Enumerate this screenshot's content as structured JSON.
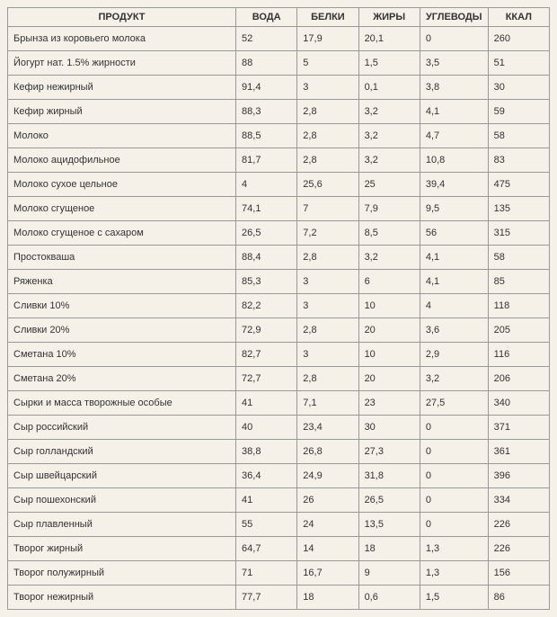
{
  "table": {
    "headers": [
      "ПРОДУКТ",
      "ВОДА",
      "БЕЛКИ",
      "ЖИРЫ",
      "УГЛЕВОДЫ",
      "ККАЛ"
    ],
    "rows": [
      [
        "Брынза из коровьего молока",
        "52",
        "17,9",
        "20,1",
        "0",
        "260"
      ],
      [
        "Йогурт нат. 1.5% жирности",
        "88",
        "5",
        "1,5",
        "3,5",
        "51"
      ],
      [
        "Кефир нежирный",
        "91,4",
        "3",
        "0,1",
        "3,8",
        "30"
      ],
      [
        "Кефир жирный",
        "88,3",
        "2,8",
        "3,2",
        "4,1",
        "59"
      ],
      [
        "Молоко",
        "88,5",
        "2,8",
        "3,2",
        "4,7",
        "58"
      ],
      [
        "Молоко ацидофильное",
        "81,7",
        "2,8",
        "3,2",
        "10,8",
        "83"
      ],
      [
        "Молоко сухое цельное",
        "4",
        "25,6",
        "25",
        "39,4",
        "475"
      ],
      [
        "Молоко сгущеное",
        "74,1",
        "7",
        "7,9",
        "9,5",
        "135"
      ],
      [
        "Молоко сгущеное с сахаром",
        "26,5",
        "7,2",
        "8,5",
        "56",
        "315"
      ],
      [
        "Простокваша",
        "88,4",
        "2,8",
        "3,2",
        "4,1",
        "58"
      ],
      [
        "Ряженка",
        "85,3",
        "3",
        "6",
        "4,1",
        "85"
      ],
      [
        "Сливки 10%",
        "82,2",
        "3",
        "10",
        "4",
        "118"
      ],
      [
        "Сливки 20%",
        "72,9",
        "2,8",
        "20",
        "3,6",
        "205"
      ],
      [
        "Сметана 10%",
        "82,7",
        "3",
        "10",
        "2,9",
        "116"
      ],
      [
        "Сметана 20%",
        "72,7",
        "2,8",
        "20",
        "3,2",
        "206"
      ],
      [
        "Сырки и масса творожные особые",
        "41",
        "7,1",
        "23",
        "27,5",
        "340"
      ],
      [
        "Сыр российский",
        "40",
        "23,4",
        "30",
        "0",
        "371"
      ],
      [
        "Сыр голландский",
        "38,8",
        "26,8",
        "27,3",
        "0",
        "361"
      ],
      [
        "Сыр швейцарский",
        "36,4",
        "24,9",
        "31,8",
        "0",
        "396"
      ],
      [
        "Сыр пошехонский",
        "41",
        "26",
        "26,5",
        "0",
        "334"
      ],
      [
        "Сыр плавленный",
        "55",
        "24",
        "13,5",
        "0",
        "226"
      ],
      [
        "Творог жирный",
        "64,7",
        "14",
        "18",
        "1,3",
        "226"
      ],
      [
        "Творог полужирный",
        "71",
        "16,7",
        "9",
        "1,3",
        "156"
      ],
      [
        "Творог нежирный",
        "77,7",
        "18",
        "0,6",
        "1,5",
        "86"
      ]
    ]
  },
  "styling": {
    "background_color": "#f5f0e8",
    "border_color": "#999999",
    "text_color": "#333333",
    "header_font_weight": "bold",
    "font_family": "Arial",
    "font_size_header": 11,
    "font_size_cell": 11,
    "column_widths": [
      "240px",
      "55px",
      "55px",
      "55px",
      "70px",
      "55px"
    ]
  }
}
